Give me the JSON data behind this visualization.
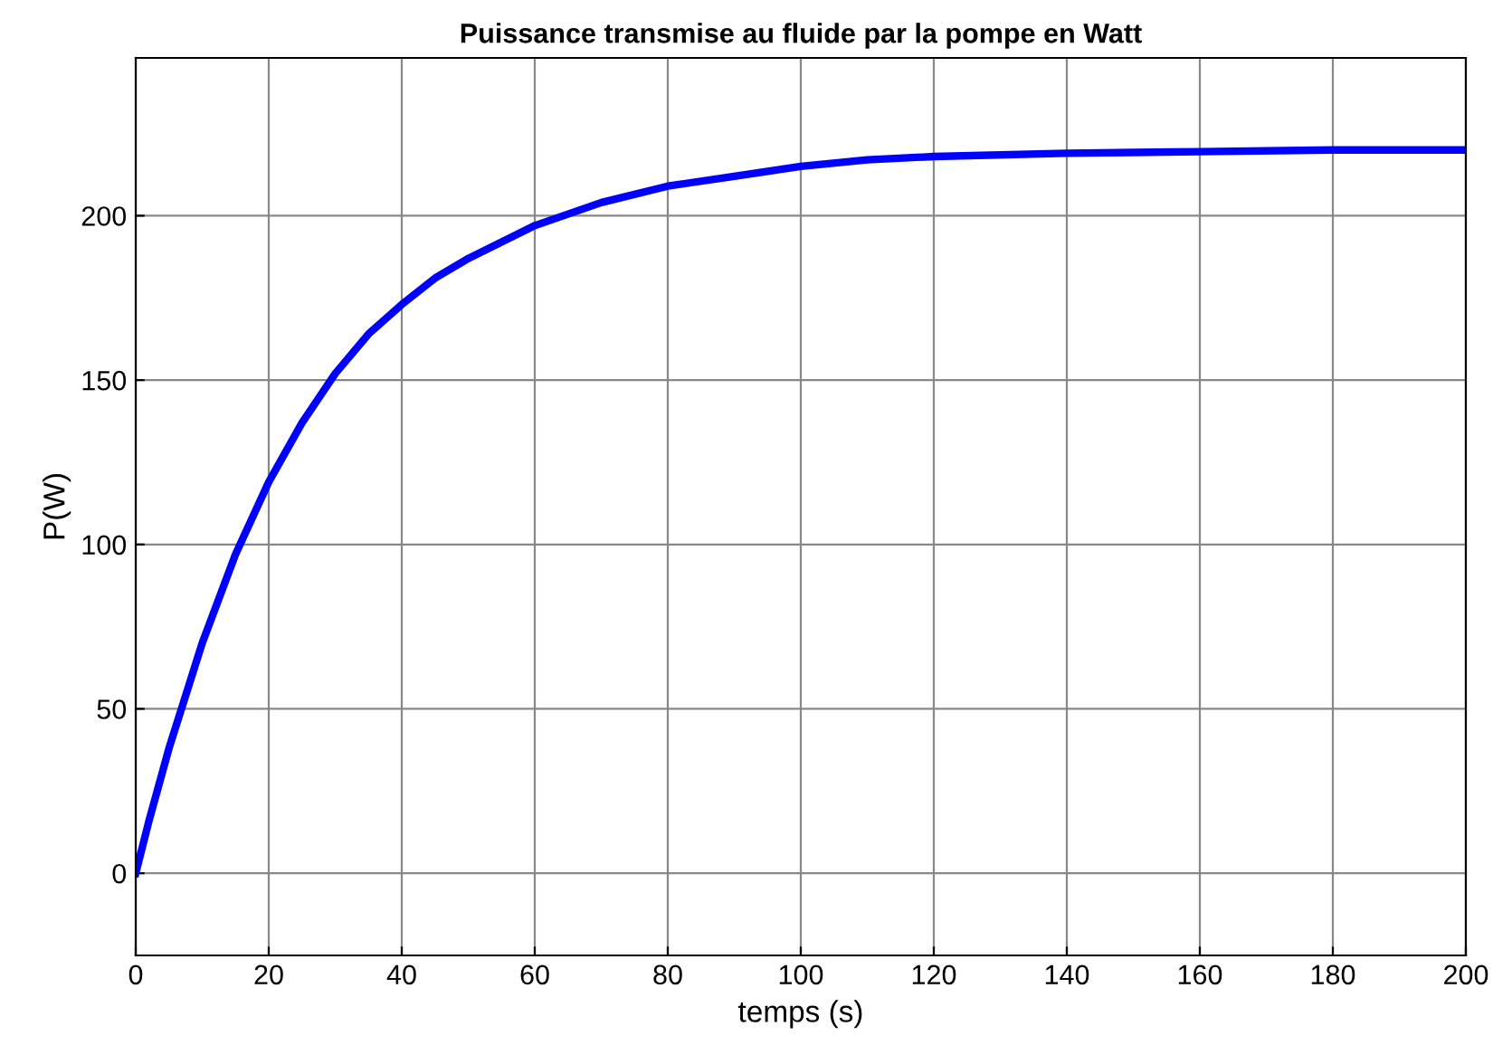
{
  "chart_data": {
    "type": "line",
    "title": "Puissance transmise au fluide par la pompe en Watt",
    "xlabel": "temps (s)",
    "ylabel": "P(W)",
    "series": [
      {
        "color": "#0000ff",
        "x": [
          0,
          2,
          5,
          10,
          15,
          20,
          25,
          30,
          35,
          40,
          45,
          50,
          60,
          70,
          80,
          90,
          100,
          110,
          120,
          140,
          160,
          180,
          200
        ],
        "values": [
          0,
          16,
          38,
          70,
          97,
          119,
          137,
          152,
          164,
          173,
          181,
          187,
          197,
          204,
          209,
          212,
          215,
          217,
          218,
          219,
          219.5,
          220,
          220
        ]
      }
    ],
    "xlim": [
      0,
      200
    ],
    "xticks": [
      0,
      20,
      40,
      60,
      80,
      100,
      120,
      140,
      160,
      180,
      200
    ],
    "ylim": [
      -25,
      248
    ],
    "yticks": [
      0,
      50,
      100,
      150,
      200
    ],
    "grid": true,
    "marker": "none",
    "line_style": "solid"
  }
}
